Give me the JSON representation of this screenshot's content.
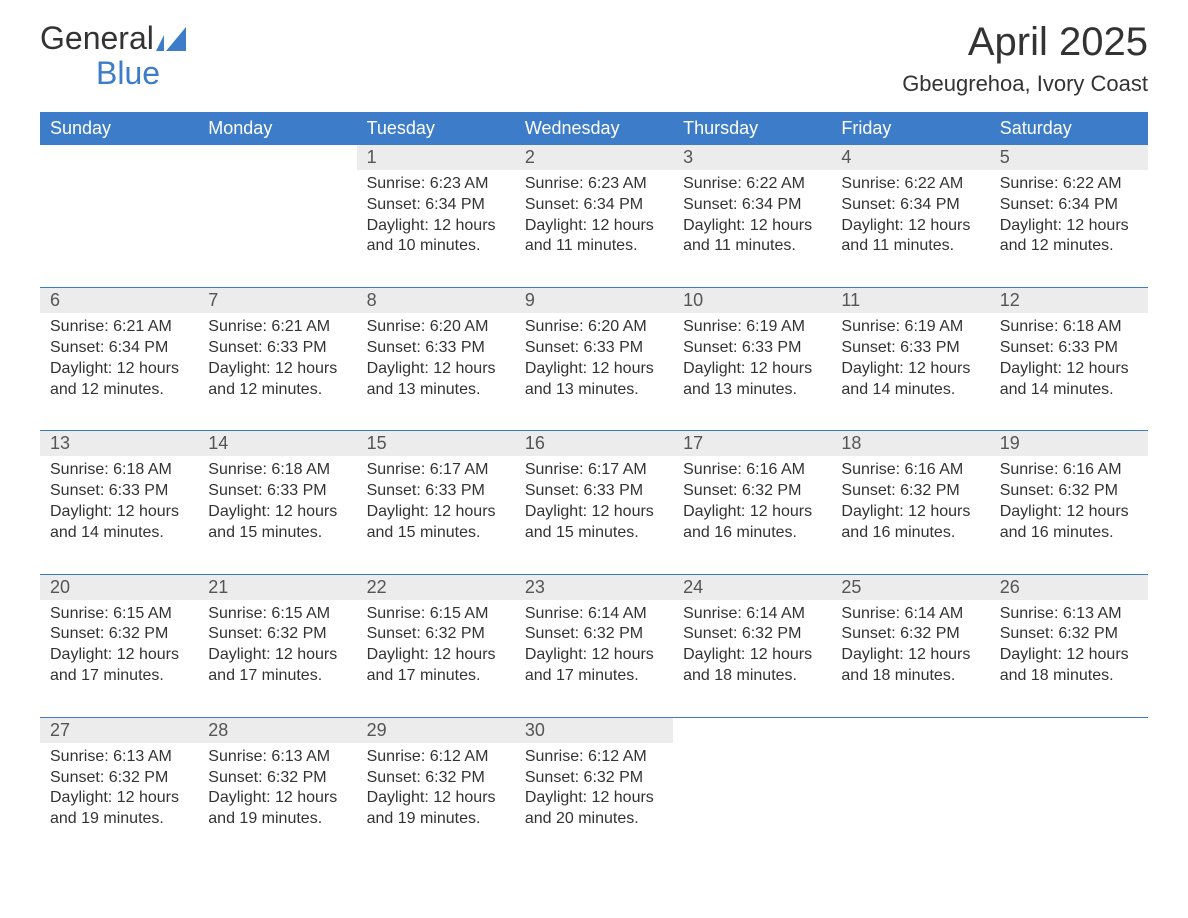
{
  "logo": {
    "text1": "General",
    "text2": "Blue"
  },
  "title": "April 2025",
  "location": "Gbeugrehoa, Ivory Coast",
  "colors": {
    "header_bg": "#3d7cc9",
    "header_text": "#ffffff",
    "daynum_bg": "#ececec",
    "text": "#333333",
    "logo_blue": "#3d7cc9"
  },
  "day_headers": [
    "Sunday",
    "Monday",
    "Tuesday",
    "Wednesday",
    "Thursday",
    "Friday",
    "Saturday"
  ],
  "weeks": [
    [
      {
        "empty": true
      },
      {
        "empty": true
      },
      {
        "num": "1",
        "sunrise": "Sunrise: 6:23 AM",
        "sunset": "Sunset: 6:34 PM",
        "daylight1": "Daylight: 12 hours",
        "daylight2": "and 10 minutes."
      },
      {
        "num": "2",
        "sunrise": "Sunrise: 6:23 AM",
        "sunset": "Sunset: 6:34 PM",
        "daylight1": "Daylight: 12 hours",
        "daylight2": "and 11 minutes."
      },
      {
        "num": "3",
        "sunrise": "Sunrise: 6:22 AM",
        "sunset": "Sunset: 6:34 PM",
        "daylight1": "Daylight: 12 hours",
        "daylight2": "and 11 minutes."
      },
      {
        "num": "4",
        "sunrise": "Sunrise: 6:22 AM",
        "sunset": "Sunset: 6:34 PM",
        "daylight1": "Daylight: 12 hours",
        "daylight2": "and 11 minutes."
      },
      {
        "num": "5",
        "sunrise": "Sunrise: 6:22 AM",
        "sunset": "Sunset: 6:34 PM",
        "daylight1": "Daylight: 12 hours",
        "daylight2": "and 12 minutes."
      }
    ],
    [
      {
        "num": "6",
        "sunrise": "Sunrise: 6:21 AM",
        "sunset": "Sunset: 6:34 PM",
        "daylight1": "Daylight: 12 hours",
        "daylight2": "and 12 minutes."
      },
      {
        "num": "7",
        "sunrise": "Sunrise: 6:21 AM",
        "sunset": "Sunset: 6:33 PM",
        "daylight1": "Daylight: 12 hours",
        "daylight2": "and 12 minutes."
      },
      {
        "num": "8",
        "sunrise": "Sunrise: 6:20 AM",
        "sunset": "Sunset: 6:33 PM",
        "daylight1": "Daylight: 12 hours",
        "daylight2": "and 13 minutes."
      },
      {
        "num": "9",
        "sunrise": "Sunrise: 6:20 AM",
        "sunset": "Sunset: 6:33 PM",
        "daylight1": "Daylight: 12 hours",
        "daylight2": "and 13 minutes."
      },
      {
        "num": "10",
        "sunrise": "Sunrise: 6:19 AM",
        "sunset": "Sunset: 6:33 PM",
        "daylight1": "Daylight: 12 hours",
        "daylight2": "and 13 minutes."
      },
      {
        "num": "11",
        "sunrise": "Sunrise: 6:19 AM",
        "sunset": "Sunset: 6:33 PM",
        "daylight1": "Daylight: 12 hours",
        "daylight2": "and 14 minutes."
      },
      {
        "num": "12",
        "sunrise": "Sunrise: 6:18 AM",
        "sunset": "Sunset: 6:33 PM",
        "daylight1": "Daylight: 12 hours",
        "daylight2": "and 14 minutes."
      }
    ],
    [
      {
        "num": "13",
        "sunrise": "Sunrise: 6:18 AM",
        "sunset": "Sunset: 6:33 PM",
        "daylight1": "Daylight: 12 hours",
        "daylight2": "and 14 minutes."
      },
      {
        "num": "14",
        "sunrise": "Sunrise: 6:18 AM",
        "sunset": "Sunset: 6:33 PM",
        "daylight1": "Daylight: 12 hours",
        "daylight2": "and 15 minutes."
      },
      {
        "num": "15",
        "sunrise": "Sunrise: 6:17 AM",
        "sunset": "Sunset: 6:33 PM",
        "daylight1": "Daylight: 12 hours",
        "daylight2": "and 15 minutes."
      },
      {
        "num": "16",
        "sunrise": "Sunrise: 6:17 AM",
        "sunset": "Sunset: 6:33 PM",
        "daylight1": "Daylight: 12 hours",
        "daylight2": "and 15 minutes."
      },
      {
        "num": "17",
        "sunrise": "Sunrise: 6:16 AM",
        "sunset": "Sunset: 6:32 PM",
        "daylight1": "Daylight: 12 hours",
        "daylight2": "and 16 minutes."
      },
      {
        "num": "18",
        "sunrise": "Sunrise: 6:16 AM",
        "sunset": "Sunset: 6:32 PM",
        "daylight1": "Daylight: 12 hours",
        "daylight2": "and 16 minutes."
      },
      {
        "num": "19",
        "sunrise": "Sunrise: 6:16 AM",
        "sunset": "Sunset: 6:32 PM",
        "daylight1": "Daylight: 12 hours",
        "daylight2": "and 16 minutes."
      }
    ],
    [
      {
        "num": "20",
        "sunrise": "Sunrise: 6:15 AM",
        "sunset": "Sunset: 6:32 PM",
        "daylight1": "Daylight: 12 hours",
        "daylight2": "and 17 minutes."
      },
      {
        "num": "21",
        "sunrise": "Sunrise: 6:15 AM",
        "sunset": "Sunset: 6:32 PM",
        "daylight1": "Daylight: 12 hours",
        "daylight2": "and 17 minutes."
      },
      {
        "num": "22",
        "sunrise": "Sunrise: 6:15 AM",
        "sunset": "Sunset: 6:32 PM",
        "daylight1": "Daylight: 12 hours",
        "daylight2": "and 17 minutes."
      },
      {
        "num": "23",
        "sunrise": "Sunrise: 6:14 AM",
        "sunset": "Sunset: 6:32 PM",
        "daylight1": "Daylight: 12 hours",
        "daylight2": "and 17 minutes."
      },
      {
        "num": "24",
        "sunrise": "Sunrise: 6:14 AM",
        "sunset": "Sunset: 6:32 PM",
        "daylight1": "Daylight: 12 hours",
        "daylight2": "and 18 minutes."
      },
      {
        "num": "25",
        "sunrise": "Sunrise: 6:14 AM",
        "sunset": "Sunset: 6:32 PM",
        "daylight1": "Daylight: 12 hours",
        "daylight2": "and 18 minutes."
      },
      {
        "num": "26",
        "sunrise": "Sunrise: 6:13 AM",
        "sunset": "Sunset: 6:32 PM",
        "daylight1": "Daylight: 12 hours",
        "daylight2": "and 18 minutes."
      }
    ],
    [
      {
        "num": "27",
        "sunrise": "Sunrise: 6:13 AM",
        "sunset": "Sunset: 6:32 PM",
        "daylight1": "Daylight: 12 hours",
        "daylight2": "and 19 minutes."
      },
      {
        "num": "28",
        "sunrise": "Sunrise: 6:13 AM",
        "sunset": "Sunset: 6:32 PM",
        "daylight1": "Daylight: 12 hours",
        "daylight2": "and 19 minutes."
      },
      {
        "num": "29",
        "sunrise": "Sunrise: 6:12 AM",
        "sunset": "Sunset: 6:32 PM",
        "daylight1": "Daylight: 12 hours",
        "daylight2": "and 19 minutes."
      },
      {
        "num": "30",
        "sunrise": "Sunrise: 6:12 AM",
        "sunset": "Sunset: 6:32 PM",
        "daylight1": "Daylight: 12 hours",
        "daylight2": "and 20 minutes."
      },
      {
        "empty": true
      },
      {
        "empty": true
      },
      {
        "empty": true
      }
    ]
  ]
}
